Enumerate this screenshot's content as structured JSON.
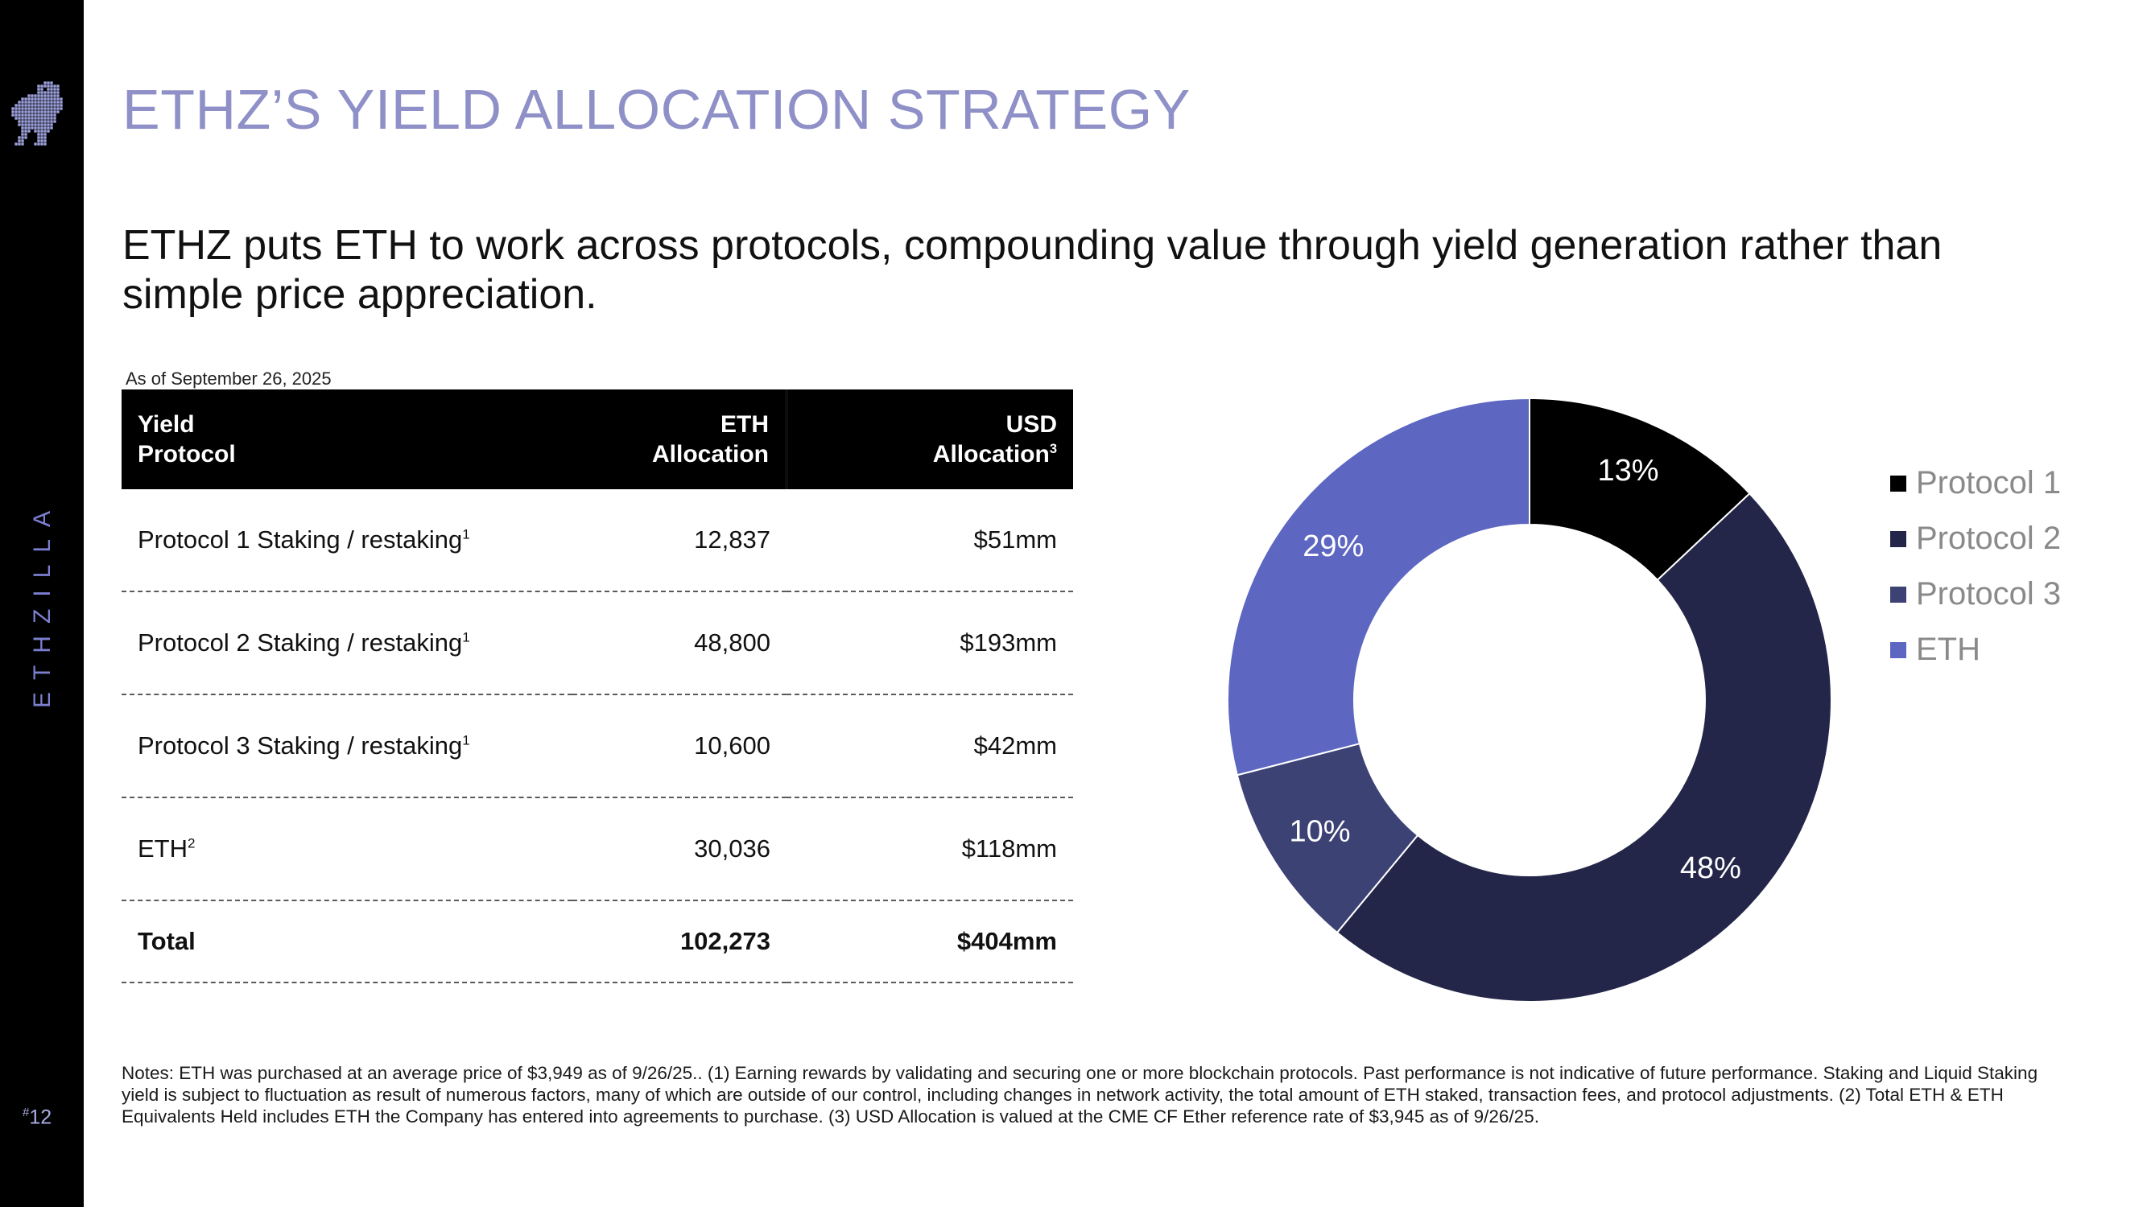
{
  "sidebar": {
    "brand": "ETHZILLA",
    "page_number": "12",
    "page_number_prefix": "#"
  },
  "title": "ETHZ’S YIELD ALLOCATION STRATEGY",
  "subtitle": "ETHZ puts ETH to work across protocols, compounding value through yield generation rather than simple price appreciation.",
  "table": {
    "as_of": "As of September 26, 2025",
    "headers": {
      "protocol_line1": "Yield",
      "protocol_line2": "Protocol",
      "eth_line1": "ETH",
      "eth_line2": "Allocation",
      "usd_line1": "USD",
      "usd_line2": "Allocation",
      "usd_footnote": "3"
    },
    "rows": [
      {
        "protocol": "Protocol 1 Staking / restaking",
        "footnote": "1",
        "eth": "12,837",
        "usd": "$51mm"
      },
      {
        "protocol": "Protocol 2 Staking / restaking",
        "footnote": "1",
        "eth": "48,800",
        "usd": "$193mm"
      },
      {
        "protocol": "Protocol 3 Staking / restaking",
        "footnote": "1",
        "eth": "10,600",
        "usd": "$42mm"
      },
      {
        "protocol": "ETH",
        "footnote": "2",
        "eth": "30,036",
        "usd": "$118mm"
      }
    ],
    "total": {
      "label": "Total",
      "eth": "102,273",
      "usd": "$404mm"
    }
  },
  "chart_data": {
    "type": "pie",
    "variant": "donut",
    "start": "12 o'clock, clockwise",
    "series": [
      {
        "name": "Protocol 1",
        "value": 13,
        "label": "13%",
        "color": "#000000",
        "label_color": "#ffffff"
      },
      {
        "name": "Protocol 2",
        "value": 48,
        "label": "48%",
        "color": "#232648",
        "label_color": "#ffffff"
      },
      {
        "name": "Protocol 3",
        "value": 10,
        "label": "10%",
        "color": "#3d4275",
        "label_color": "#ffffff"
      },
      {
        "name": "ETH",
        "value": 29,
        "label": "29%",
        "color": "#5d66c1",
        "label_color": "#ffffff"
      }
    ],
    "legend_position": "right"
  },
  "notes": "Notes: ETH was purchased at an average price of $3,949 as of 9/26/25.. (1) Earning rewards by validating and securing one or more blockchain protocols. Past performance is not indicative of future performance. Staking and Liquid Staking yield is subject to fluctuation as result of numerous factors, many of which are outside of our control, including changes in network activity, the total amount of ETH staked, transaction fees, and protocol adjustments. (2) Total ETH & ETH Equivalents Held includes ETH the Company has entered into agreements to purchase. (3) USD Allocation is valued at the CME CF Ether reference rate of $3,945 as of 9/26/25.",
  "colors": {
    "title": "#8e90c7",
    "sidebar_bg": "#000000",
    "sidebar_text": "#7b7fd0",
    "logo": "#9fa3e0"
  },
  "icons": {
    "logo": "dinosaur-pixel-logo-icon"
  }
}
